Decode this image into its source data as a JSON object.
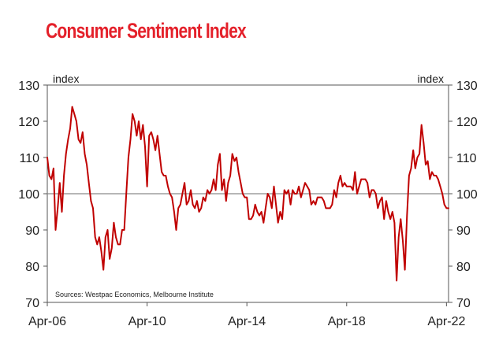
{
  "chart_data": {
    "type": "line",
    "title": "Consumer Sentiment Index",
    "y_unit_left": "index",
    "y_unit_right": "index",
    "source": "Sources: Westpac Economics, Melbourne Institute",
    "ylim": [
      70,
      130
    ],
    "yticks": [
      70,
      80,
      90,
      100,
      110,
      120,
      130
    ],
    "xlim": [
      "2006-04",
      "2022-05"
    ],
    "xticks": [
      {
        "value": "2006-04",
        "label": "Apr-06"
      },
      {
        "value": "2010-04",
        "label": "Apr-10"
      },
      {
        "value": "2014-04",
        "label": "Apr-14"
      },
      {
        "value": "2018-04",
        "label": "Apr-18"
      },
      {
        "value": "2022-04",
        "label": "Apr-22"
      }
    ],
    "reference_line": 100,
    "grid": false,
    "series": [
      {
        "color": "#c00000",
        "points": [
          [
            "2006-04",
            110
          ],
          [
            "2006-05",
            105
          ],
          [
            "2006-06",
            104
          ],
          [
            "2006-07",
            107
          ],
          [
            "2006-08",
            90
          ],
          [
            "2006-09",
            96
          ],
          [
            "2006-10",
            103
          ],
          [
            "2006-11",
            95
          ],
          [
            "2006-12",
            105
          ],
          [
            "2007-01",
            111
          ],
          [
            "2007-02",
            115
          ],
          [
            "2007-03",
            118
          ],
          [
            "2007-04",
            124
          ],
          [
            "2007-05",
            122
          ],
          [
            "2007-06",
            120
          ],
          [
            "2007-07",
            115
          ],
          [
            "2007-08",
            114
          ],
          [
            "2007-09",
            117
          ],
          [
            "2007-10",
            111
          ],
          [
            "2007-11",
            108
          ],
          [
            "2007-12",
            103
          ],
          [
            "2008-01",
            98
          ],
          [
            "2008-02",
            96
          ],
          [
            "2008-03",
            88
          ],
          [
            "2008-04",
            86
          ],
          [
            "2008-05",
            88
          ],
          [
            "2008-06",
            84
          ],
          [
            "2008-07",
            79
          ],
          [
            "2008-08",
            88
          ],
          [
            "2008-09",
            90
          ],
          [
            "2008-10",
            82
          ],
          [
            "2008-11",
            85
          ],
          [
            "2008-12",
            92
          ],
          [
            "2009-01",
            88
          ],
          [
            "2009-02",
            86
          ],
          [
            "2009-03",
            86
          ],
          [
            "2009-04",
            90
          ],
          [
            "2009-05",
            90
          ],
          [
            "2009-06",
            100
          ],
          [
            "2009-07",
            110
          ],
          [
            "2009-08",
            115
          ],
          [
            "2009-09",
            122
          ],
          [
            "2009-10",
            120
          ],
          [
            "2009-11",
            116
          ],
          [
            "2009-12",
            120
          ],
          [
            "2010-01",
            115
          ],
          [
            "2010-02",
            119
          ],
          [
            "2010-03",
            113
          ],
          [
            "2010-04",
            102
          ],
          [
            "2010-05",
            116
          ],
          [
            "2010-06",
            117
          ],
          [
            "2010-07",
            115
          ],
          [
            "2010-08",
            112
          ],
          [
            "2010-09",
            116
          ],
          [
            "2010-10",
            111
          ],
          [
            "2010-11",
            106
          ],
          [
            "2010-12",
            105
          ],
          [
            "2011-01",
            105
          ],
          [
            "2011-02",
            102
          ],
          [
            "2011-03",
            100
          ],
          [
            "2011-04",
            99
          ],
          [
            "2011-05",
            95
          ],
          [
            "2011-06",
            90
          ],
          [
            "2011-07",
            96
          ],
          [
            "2011-08",
            97
          ],
          [
            "2011-09",
            100
          ],
          [
            "2011-10",
            103
          ],
          [
            "2011-11",
            97
          ],
          [
            "2011-12",
            98
          ],
          [
            "2012-01",
            101
          ],
          [
            "2012-02",
            97
          ],
          [
            "2012-03",
            96
          ],
          [
            "2012-04",
            98
          ],
          [
            "2012-05",
            95
          ],
          [
            "2012-06",
            96
          ],
          [
            "2012-07",
            99
          ],
          [
            "2012-08",
            98
          ],
          [
            "2012-09",
            101
          ],
          [
            "2012-10",
            100
          ],
          [
            "2012-11",
            101
          ],
          [
            "2012-12",
            104
          ],
          [
            "2013-01",
            101
          ],
          [
            "2013-02",
            108
          ],
          [
            "2013-03",
            111
          ],
          [
            "2013-04",
            101
          ],
          [
            "2013-05",
            104
          ],
          [
            "2013-06",
            98
          ],
          [
            "2013-07",
            103
          ],
          [
            "2013-08",
            105
          ],
          [
            "2013-09",
            111
          ],
          [
            "2013-10",
            109
          ],
          [
            "2013-11",
            110
          ],
          [
            "2013-12",
            106
          ],
          [
            "2014-01",
            103
          ],
          [
            "2014-02",
            100
          ],
          [
            "2014-03",
            99
          ],
          [
            "2014-04",
            99
          ],
          [
            "2014-05",
            93
          ],
          [
            "2014-06",
            93
          ],
          [
            "2014-07",
            94
          ],
          [
            "2014-08",
            97
          ],
          [
            "2014-09",
            95
          ],
          [
            "2014-10",
            94
          ],
          [
            "2014-11",
            95
          ],
          [
            "2014-12",
            92
          ],
          [
            "2015-01",
            96
          ],
          [
            "2015-02",
            100
          ],
          [
            "2015-03",
            99
          ],
          [
            "2015-04",
            96
          ],
          [
            "2015-05",
            102
          ],
          [
            "2015-06",
            97
          ],
          [
            "2015-07",
            92
          ],
          [
            "2015-08",
            95
          ],
          [
            "2015-09",
            93
          ],
          [
            "2015-10",
            101
          ],
          [
            "2015-11",
            100
          ],
          [
            "2015-12",
            101
          ],
          [
            "2016-01",
            97
          ],
          [
            "2016-02",
            101
          ],
          [
            "2016-03",
            100
          ],
          [
            "2016-04",
            100
          ],
          [
            "2016-05",
            102
          ],
          [
            "2016-06",
            99
          ],
          [
            "2016-07",
            101
          ],
          [
            "2016-08",
            103
          ],
          [
            "2016-09",
            102
          ],
          [
            "2016-10",
            101
          ],
          [
            "2016-11",
            97
          ],
          [
            "2016-12",
            98
          ],
          [
            "2017-01",
            97
          ],
          [
            "2017-02",
            99
          ],
          [
            "2017-03",
            99
          ],
          [
            "2017-04",
            99
          ],
          [
            "2017-05",
            98
          ],
          [
            "2017-06",
            96
          ],
          [
            "2017-07",
            96
          ],
          [
            "2017-08",
            96
          ],
          [
            "2017-09",
            97
          ],
          [
            "2017-10",
            101
          ],
          [
            "2017-11",
            99
          ],
          [
            "2017-12",
            103
          ],
          [
            "2018-01",
            105
          ],
          [
            "2018-02",
            102
          ],
          [
            "2018-03",
            103
          ],
          [
            "2018-04",
            102
          ],
          [
            "2018-05",
            102
          ],
          [
            "2018-06",
            102
          ],
          [
            "2018-07",
            101
          ],
          [
            "2018-08",
            106
          ],
          [
            "2018-09",
            100
          ],
          [
            "2018-10",
            102
          ],
          [
            "2018-11",
            104
          ],
          [
            "2018-12",
            104
          ],
          [
            "2019-01",
            104
          ],
          [
            "2019-02",
            103
          ],
          [
            "2019-03",
            99
          ],
          [
            "2019-04",
            101
          ],
          [
            "2019-05",
            101
          ],
          [
            "2019-06",
            100
          ],
          [
            "2019-07",
            96
          ],
          [
            "2019-08",
            98
          ],
          [
            "2019-09",
            99
          ],
          [
            "2019-10",
            93
          ],
          [
            "2019-11",
            98
          ],
          [
            "2019-12",
            95
          ],
          [
            "2020-01",
            93
          ],
          [
            "2020-02",
            95
          ],
          [
            "2020-03",
            92
          ],
          [
            "2020-04",
            76
          ],
          [
            "2020-05",
            88
          ],
          [
            "2020-06",
            93
          ],
          [
            "2020-07",
            87
          ],
          [
            "2020-08",
            79
          ],
          [
            "2020-09",
            94
          ],
          [
            "2020-10",
            105
          ],
          [
            "2020-11",
            107
          ],
          [
            "2020-12",
            112
          ],
          [
            "2021-01",
            107
          ],
          [
            "2021-02",
            110
          ],
          [
            "2021-03",
            111
          ],
          [
            "2021-04",
            119
          ],
          [
            "2021-05",
            114
          ],
          [
            "2021-06",
            108
          ],
          [
            "2021-07",
            109
          ],
          [
            "2021-08",
            104
          ],
          [
            "2021-09",
            106
          ],
          [
            "2021-10",
            105
          ],
          [
            "2021-11",
            105
          ],
          [
            "2021-12",
            104
          ],
          [
            "2022-01",
            102
          ],
          [
            "2022-02",
            100
          ],
          [
            "2022-03",
            97
          ],
          [
            "2022-04",
            96
          ],
          [
            "2022-05",
            96
          ]
        ]
      }
    ]
  }
}
